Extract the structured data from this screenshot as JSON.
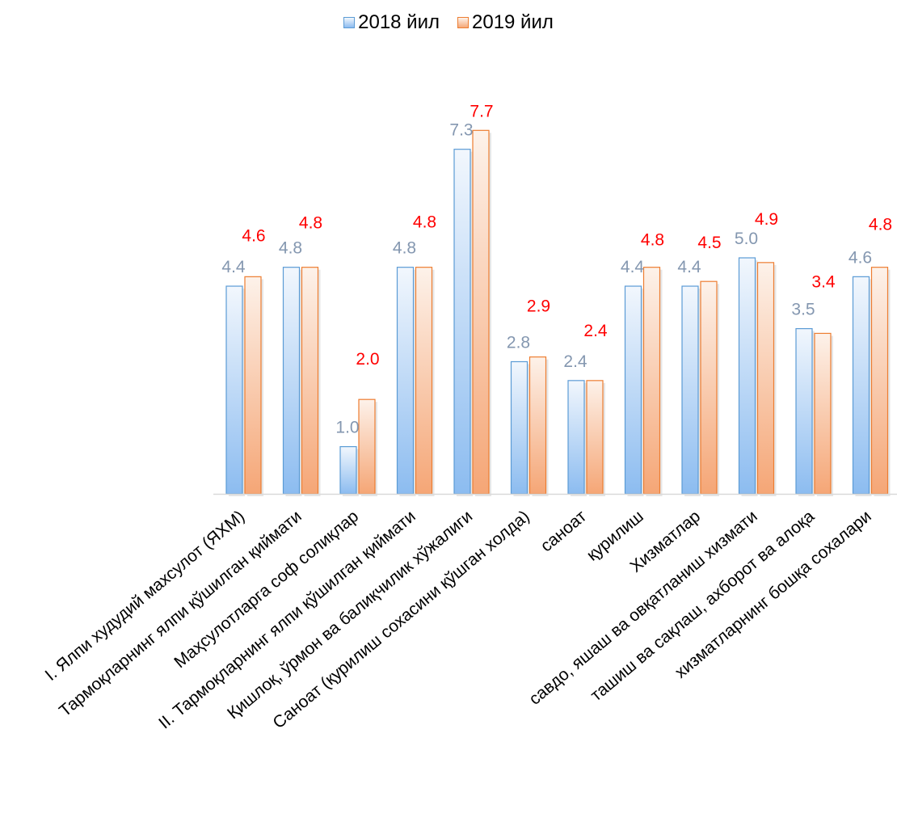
{
  "chart_data": {
    "type": "bar",
    "categories": [
      "I. Ялпи худудий махсулот (ЯХМ)",
      "Тармоқларнинг ялпи қўшилган қиймати",
      "Маҳсулотларга соф солиқлар",
      "II. Тармоқларнинг ялпи қўшилган қиймати",
      "Қишлоқ, ўрмон ва балиқчилик хўжалиги",
      "Саноат (қурилиш сохасини қўшган холда)",
      "саноат",
      "қурилиш",
      "Хизматлар",
      "савдо, яшаш ва овқатланиш хизмати",
      "ташиш ва сақлаш, ахборот ва алоқа",
      "хизматларнинг бошқа сохалари"
    ],
    "series": [
      {
        "name": "2018 йил",
        "values": [
          4.4,
          4.8,
          1.0,
          4.8,
          7.3,
          2.8,
          2.4,
          4.4,
          4.4,
          5.0,
          3.5,
          4.6
        ],
        "labels": [
          "4.4",
          "4.8",
          "1.0",
          "4.8",
          "7.3",
          "2.8",
          "2.4",
          "4.4",
          "4.4",
          "5.0",
          "3.5",
          "4.6"
        ]
      },
      {
        "name": "2019 йил",
        "values": [
          4.6,
          4.8,
          2.0,
          4.8,
          7.7,
          2.9,
          2.4,
          4.8,
          4.5,
          4.9,
          3.4,
          4.8
        ],
        "labels": [
          "4.6",
          "4.8",
          "2.0",
          "4.8",
          "7.7",
          "2.9",
          "2.4",
          "4.8",
          "4.5",
          "4.9",
          "3.4",
          "4.8"
        ]
      }
    ],
    "ylim": [
      0,
      8.3
    ],
    "grid": false,
    "legend": "top-center",
    "colors": {
      "series1": "#5b9bd5",
      "series2": "#ed7d31",
      "label1": "#8497b0",
      "label2": "#ff0000"
    }
  }
}
